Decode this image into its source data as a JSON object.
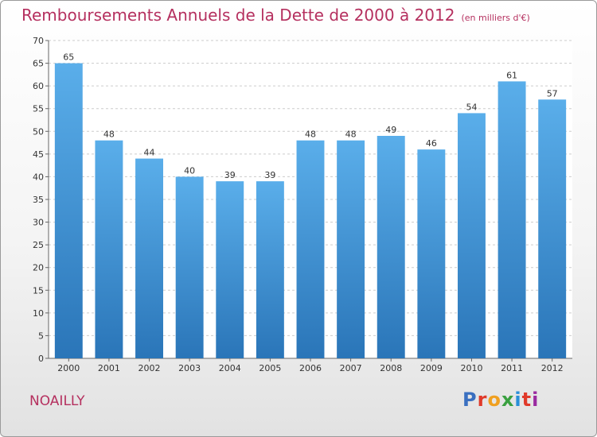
{
  "title": "Remboursements Annuels de la Dette de 2000 à 2012",
  "unit": "(en milliers d'€)",
  "commune": "NOAILLY",
  "logo": {
    "text": "Proxiti",
    "letter_colors": [
      "#3a6fc0",
      "#e03a2a",
      "#f0a020",
      "#3aa040",
      "#2a8fd8",
      "#e03a2a",
      "#9a2aa0"
    ]
  },
  "colors": {
    "bar_top": "#5aaeea",
    "bar_bottom": "#2a75b8",
    "title": "#b5305f",
    "grid": "#cccccc"
  },
  "chart_data": {
    "type": "bar",
    "categories": [
      "2000",
      "2001",
      "2002",
      "2003",
      "2004",
      "2005",
      "2006",
      "2007",
      "2008",
      "2009",
      "2010",
      "2011",
      "2012"
    ],
    "values": [
      65,
      48,
      44,
      40,
      39,
      39,
      48,
      48,
      49,
      46,
      54,
      61,
      57
    ],
    "title": "Remboursements Annuels de la Dette de 2000 à 2012",
    "xlabel": "",
    "ylabel": "",
    "ylim": [
      0,
      70
    ],
    "yticks": [
      0,
      5,
      10,
      15,
      20,
      25,
      30,
      35,
      40,
      45,
      50,
      55,
      60,
      65,
      70
    ],
    "grid": true,
    "legend": "none"
  }
}
